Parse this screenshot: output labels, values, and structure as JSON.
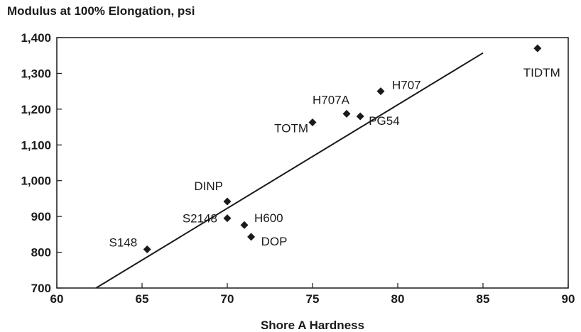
{
  "chart_data": {
    "type": "scatter",
    "title": "",
    "ylabel": "Modulus at 100% Elongation, psi",
    "xlabel": "Shore A Hardness",
    "xlim": [
      60,
      90
    ],
    "ylim": [
      700,
      1400
    ],
    "xticks": [
      60,
      65,
      70,
      75,
      80,
      85,
      90
    ],
    "yticks": [
      700,
      800,
      900,
      1000,
      1100,
      1200,
      1300,
      1400
    ],
    "ytick_labels": [
      "700",
      "800",
      "900",
      "1,000",
      "1,100",
      "1,200",
      "1,300",
      "1,400"
    ],
    "marker": "diamond",
    "grid": false,
    "points": [
      {
        "label": "S148",
        "x": 65.3,
        "y": 808
      },
      {
        "label": "S2148",
        "x": 70.0,
        "y": 895
      },
      {
        "label": "DINP",
        "x": 70.0,
        "y": 942
      },
      {
        "label": "H600",
        "x": 71.0,
        "y": 876
      },
      {
        "label": "DOP",
        "x": 71.4,
        "y": 843
      },
      {
        "label": "TOTM",
        "x": 75.0,
        "y": 1163
      },
      {
        "label": "H707A",
        "x": 77.0,
        "y": 1187
      },
      {
        "label": "PG54",
        "x": 77.8,
        "y": 1180
      },
      {
        "label": "H707",
        "x": 79.0,
        "y": 1250
      },
      {
        "label": "TIDTM",
        "x": 88.2,
        "y": 1370
      }
    ],
    "trendline": {
      "x": [
        62.3,
        85.0
      ],
      "y": [
        700,
        1357
      ]
    }
  }
}
